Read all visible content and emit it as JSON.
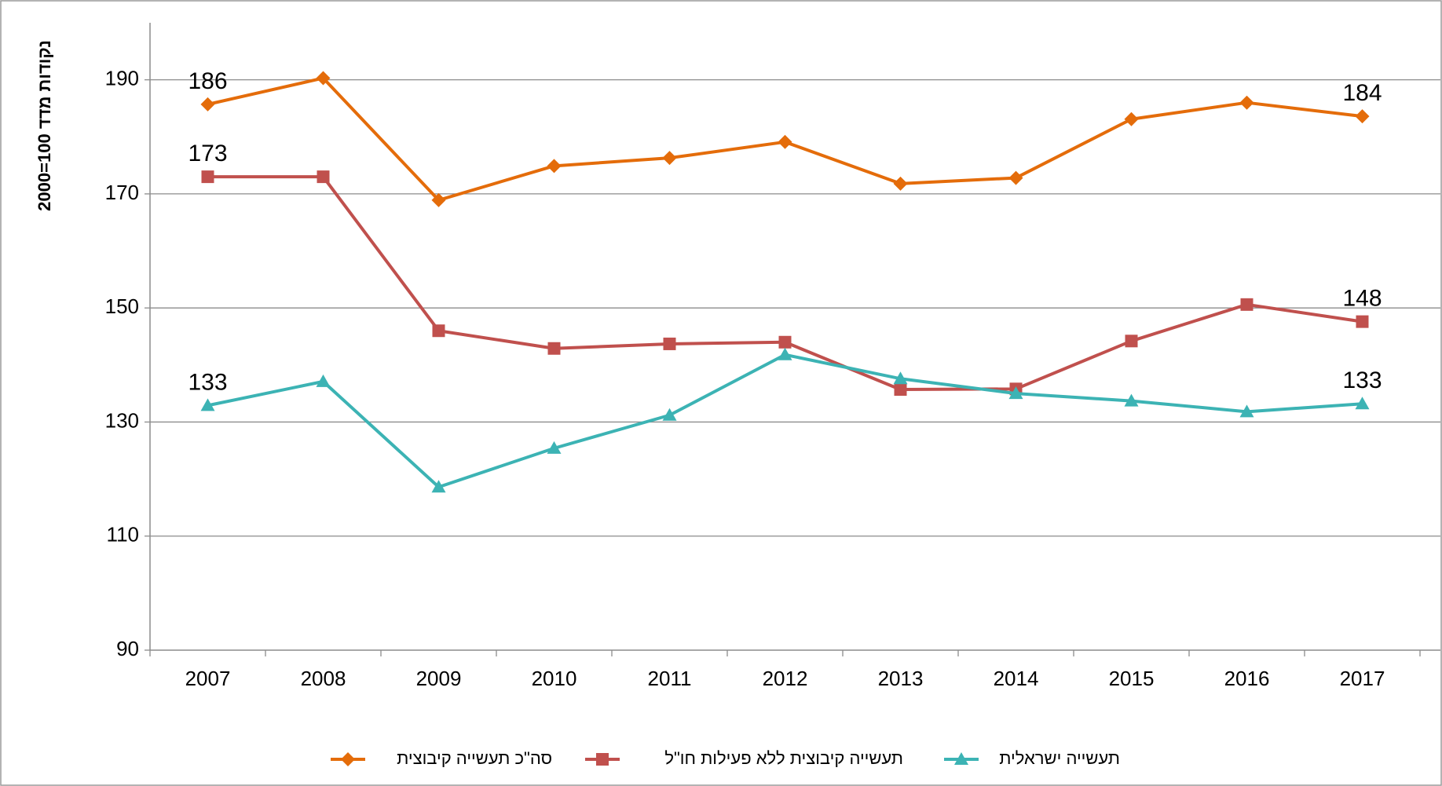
{
  "chart_data": {
    "type": "line",
    "ylabel": "נקודות מדד 100=2000",
    "categories": [
      "2007",
      "2008",
      "2009",
      "2010",
      "2011",
      "2012",
      "2013",
      "2014",
      "2015",
      "2016",
      "2017"
    ],
    "series": [
      {
        "name": "סה\"כ תעשייה קיבוצית",
        "color": "#e46c0a",
        "marker": "diamond",
        "values": [
          185.7,
          190.3,
          168.9,
          174.9,
          176.3,
          179.1,
          171.8,
          172.8,
          183.1,
          186,
          183.6
        ],
        "value_labels": [
          "186",
          null,
          null,
          null,
          null,
          null,
          null,
          null,
          null,
          null,
          "184"
        ]
      },
      {
        "name": "תעשייה קיבוצית ללא פעילות חו\"ל",
        "color": "#c0504d",
        "marker": "square",
        "values": [
          173,
          173,
          146,
          142.9,
          143.7,
          144,
          135.7,
          135.8,
          144.2,
          150.6,
          147.6
        ],
        "value_labels": [
          "173",
          null,
          null,
          null,
          null,
          null,
          null,
          null,
          null,
          null,
          "148"
        ]
      },
      {
        "name": "תעשייה ישראלית",
        "color": "#3cb3b4",
        "marker": "triangle",
        "values": [
          132.9,
          137.1,
          118.6,
          125.4,
          131.2,
          141.8,
          137.6,
          135,
          133.7,
          131.8,
          133.2
        ],
        "value_labels": [
          "133",
          null,
          null,
          null,
          null,
          null,
          null,
          null,
          null,
          null,
          "133"
        ]
      }
    ],
    "ylim": [
      90,
      200
    ],
    "yticks": [
      90,
      110,
      130,
      150,
      170,
      190
    ],
    "grid": true,
    "legend": "bottom"
  }
}
